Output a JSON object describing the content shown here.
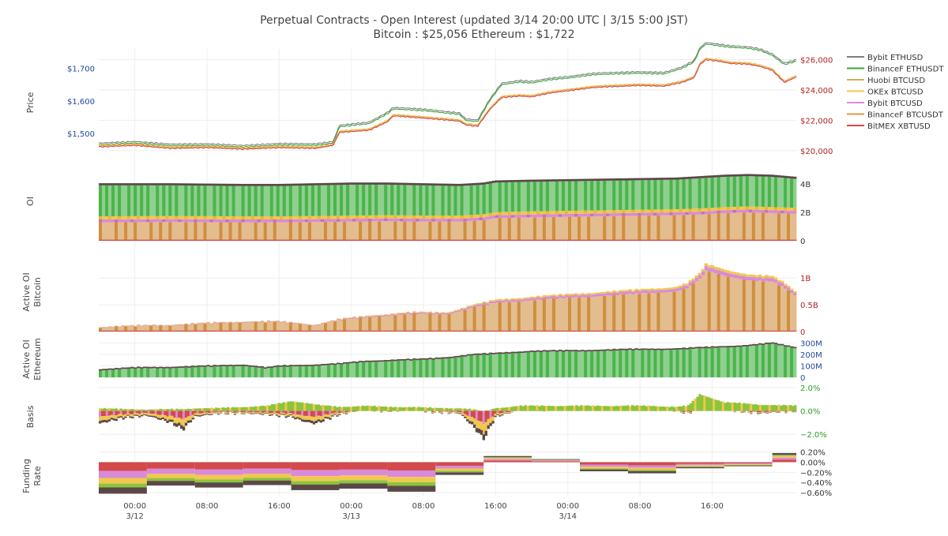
{
  "header": {
    "title_line1": "Perpetual Contracts - Open Interest   (updated   3/14 20:00 UTC   |   3/15 5:00 JST)",
    "title_line2": "Bitcoin : $25,056    Ethereum : $1,722"
  },
  "colors": {
    "bybit_ethusd": "#7f7f7f",
    "binancef_ethusdt": "#3aa63a",
    "huobi_btcusd": "#c9b15a",
    "okex_btcusd": "#f0c850",
    "bybit_btcusd": "#d98ad9",
    "binancef_btcusdt": "#e09a40",
    "bitmex_xbtusd": "#d24a4a",
    "dark_top": "#5a4848",
    "light_green": "#8fd08f",
    "light_tan": "#e3bd8e"
  },
  "chart_data": [
    {
      "type": "line",
      "panel": "price",
      "ylabel": "Price",
      "left_axis_ticks": [
        "$1,500",
        "$1,600",
        "$1,700"
      ],
      "right_axis_ticks": [
        "$20,000",
        "$22,000",
        "$24,000",
        "$26,000"
      ],
      "ylim_left": [
        1400,
        1760
      ],
      "ylim_right": [
        19000,
        26700
      ],
      "x_hours": [
        0,
        6,
        12,
        18,
        24,
        30,
        36,
        39,
        40,
        45,
        48,
        49,
        54,
        60,
        61,
        63,
        65,
        67,
        70,
        72,
        75,
        78,
        82,
        84,
        90,
        94,
        97,
        99,
        100,
        101,
        103,
        105,
        108,
        110,
        112,
        114,
        116
      ],
      "btc_values": [
        20450,
        20550,
        20350,
        20400,
        20300,
        20400,
        20350,
        20550,
        21400,
        21550,
        22100,
        22500,
        22350,
        22150,
        21900,
        21800,
        22900,
        23700,
        23800,
        23750,
        24000,
        24150,
        24350,
        24400,
        24500,
        24450,
        24700,
        25000,
        25900,
        26200,
        26100,
        25950,
        25900,
        25750,
        25500,
        24700,
        25056
      ],
      "eth_values": [
        1465,
        1470,
        1462,
        1463,
        1458,
        1464,
        1463,
        1470,
        1520,
        1530,
        1560,
        1575,
        1570,
        1558,
        1540,
        1536,
        1600,
        1650,
        1658,
        1655,
        1665,
        1670,
        1680,
        1682,
        1685,
        1683,
        1700,
        1720,
        1760,
        1775,
        1770,
        1765,
        1762,
        1755,
        1740,
        1712,
        1722
      ],
      "legend": [
        "Bybit ETHUSD",
        "BinanceF ETHUSDT",
        "Huobi BTCUSD",
        "OKEx BTCUSD",
        "Bybit BTCUSD",
        "BinanceF BTCUSDT",
        "BitMEX XBTUSD"
      ],
      "grid": true,
      "legend_position": "right"
    },
    {
      "type": "area",
      "panel": "oi",
      "ylabel": "OI",
      "right_axis_ticks": [
        "0",
        "2B",
        "4B"
      ],
      "ylim": [
        0,
        5
      ],
      "x_hours": [
        0,
        12,
        24,
        30,
        36,
        42,
        48,
        54,
        60,
        64,
        66,
        72,
        80,
        88,
        96,
        100,
        104,
        108,
        112,
        116
      ],
      "total_values": [
        4.05,
        4.05,
        4.0,
        4.0,
        4.05,
        4.1,
        4.1,
        4.05,
        4.0,
        4.1,
        4.25,
        4.3,
        4.35,
        4.4,
        4.45,
        4.55,
        4.65,
        4.7,
        4.65,
        4.5
      ],
      "tan_top_values": [
        1.3,
        1.32,
        1.3,
        1.3,
        1.32,
        1.35,
        1.38,
        1.35,
        1.35,
        1.45,
        1.6,
        1.65,
        1.7,
        1.75,
        1.8,
        1.85,
        1.95,
        2.0,
        1.95,
        1.9
      ]
    },
    {
      "type": "area",
      "panel": "active_oi_btc",
      "ylabel": "Active OI Bitcoin",
      "right_axis_ticks": [
        "0",
        "0.5B",
        "1B"
      ],
      "ylim": [
        0,
        1.4
      ],
      "x_hours": [
        0,
        12,
        24,
        30,
        36,
        40,
        46,
        52,
        58,
        62,
        66,
        72,
        80,
        88,
        96,
        98,
        100,
        101,
        104,
        108,
        112,
        114,
        116
      ],
      "values": [
        0.08,
        0.12,
        0.18,
        0.18,
        0.12,
        0.22,
        0.3,
        0.35,
        0.35,
        0.48,
        0.58,
        0.64,
        0.7,
        0.76,
        0.82,
        0.9,
        1.08,
        1.25,
        1.15,
        1.05,
        1.02,
        0.9,
        0.72
      ]
    },
    {
      "type": "area",
      "panel": "active_oi_eth",
      "ylabel": "Active OI Ethereum",
      "right_axis_ticks": [
        "0",
        "100M",
        "200M",
        "300M"
      ],
      "ylim": [
        0,
        330
      ],
      "x_hours": [
        0,
        6,
        12,
        18,
        24,
        28,
        30,
        36,
        40,
        44,
        48,
        54,
        58,
        62,
        66,
        72,
        80,
        88,
        96,
        100,
        104,
        108,
        112,
        116
      ],
      "values": [
        70,
        85,
        90,
        100,
        110,
        85,
        100,
        110,
        120,
        140,
        150,
        160,
        175,
        200,
        210,
        230,
        235,
        245,
        250,
        260,
        270,
        280,
        300,
        260
      ]
    },
    {
      "type": "line",
      "panel": "basis",
      "ylabel": "Basis",
      "right_axis_ticks": [
        "−2.0%",
        "0.0%",
        "2.0%"
      ],
      "ylim": [
        -3.2,
        2.2
      ],
      "x_hours": [
        0,
        4,
        8,
        12,
        14,
        16,
        20,
        24,
        28,
        32,
        34,
        36,
        40,
        44,
        48,
        52,
        56,
        60,
        62,
        64,
        66,
        70,
        76,
        84,
        92,
        96,
        98,
        100,
        104,
        110,
        116
      ],
      "lower_values": [
        -1.1,
        -0.6,
        -0.4,
        -1.0,
        -1.6,
        -0.5,
        -0.2,
        -0.2,
        -0.3,
        -0.5,
        -0.9,
        -1.1,
        -0.3,
        0.1,
        0.0,
        0.1,
        -0.1,
        -0.2,
        -1.2,
        -2.4,
        -0.5,
        0.1,
        0.1,
        0.2,
        0.1,
        0.0,
        -0.2,
        0.4,
        0.1,
        -0.2,
        0.0
      ],
      "upper_values": [
        0.2,
        0.1,
        0.1,
        0.1,
        0.1,
        0.2,
        0.2,
        0.3,
        0.4,
        0.8,
        0.7,
        0.5,
        0.3,
        0.4,
        0.3,
        0.3,
        0.2,
        0.2,
        0.1,
        -0.1,
        0.2,
        0.4,
        0.4,
        0.4,
        0.4,
        0.3,
        0.4,
        1.4,
        0.7,
        0.5,
        0.4
      ]
    },
    {
      "type": "bar",
      "panel": "funding_rate",
      "ylabel": "Funding Rate",
      "right_axis_ticks": [
        "−0.60%",
        "−0.40%",
        "−0.20%",
        "0.00%",
        "0.20%"
      ],
      "ylim": [
        -0.66,
        0.24
      ],
      "period_starts": [
        0,
        8,
        16,
        24,
        32,
        40,
        48,
        56,
        64,
        72,
        80,
        88,
        96,
        104,
        112
      ],
      "period_ends": [
        8,
        16,
        24,
        32,
        40,
        48,
        56,
        64,
        72,
        80,
        88,
        96,
        104,
        112,
        116
      ],
      "totals": [
        -0.62,
        -0.46,
        -0.5,
        -0.45,
        -0.55,
        -0.52,
        -0.58,
        -0.25,
        0.12,
        0.06,
        -0.18,
        -0.22,
        -0.12,
        -0.08,
        0.18
      ]
    }
  ],
  "x_axis": {
    "ticks": [
      {
        "hour": 6,
        "label": "00:00",
        "sub": "3/12"
      },
      {
        "hour": 18,
        "label": "08:00",
        "sub": ""
      },
      {
        "hour": 30,
        "label": "16:00",
        "sub": ""
      },
      {
        "hour": 42,
        "label": "00:00",
        "sub": "3/13"
      },
      {
        "hour": 54,
        "label": "08:00",
        "sub": ""
      },
      {
        "hour": 66,
        "label": "16:00",
        "sub": ""
      },
      {
        "hour": 78,
        "label": "00:00",
        "sub": "3/14"
      },
      {
        "hour": 90,
        "label": "08:00",
        "sub": ""
      },
      {
        "hour": 102,
        "label": "16:00",
        "sub": ""
      }
    ],
    "range_hours": [
      0,
      116
    ]
  }
}
